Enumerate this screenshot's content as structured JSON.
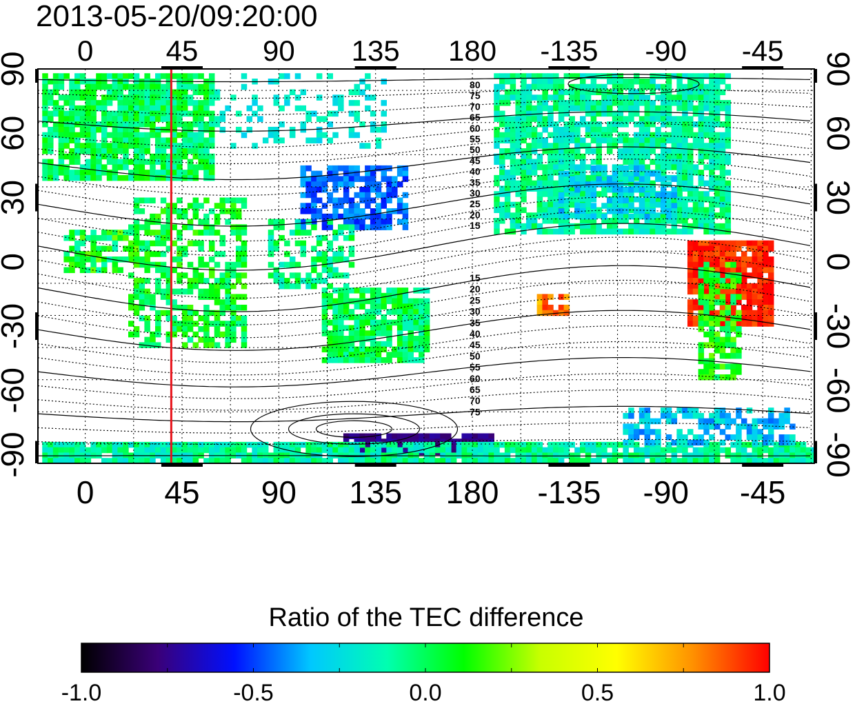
{
  "title": "2013-05-20/09:20:00",
  "map": {
    "top_lon_ticks": [
      "0",
      "45",
      "90",
      "135",
      "180",
      "-135",
      "-90",
      "-45"
    ],
    "bottom_lon_ticks": [
      "0",
      "45",
      "90",
      "135",
      "180",
      "-135",
      "-90",
      "-45"
    ],
    "left_lat_ticks": [
      "90",
      "60",
      "30",
      "0",
      "-30",
      "-60",
      "-90"
    ],
    "right_lat_ticks": [
      "90",
      "60",
      "30",
      "0",
      "-30",
      "-60",
      "-90"
    ],
    "marker_longitude": 40,
    "marker_color": "#e8141c",
    "contour_labels_north": [
      "80",
      "75",
      "70",
      "65",
      "60",
      "55",
      "50",
      "45",
      "40",
      "35",
      "30",
      "25",
      "20",
      "15"
    ],
    "contour_labels_south": [
      "15",
      "20",
      "25",
      "30",
      "35",
      "40",
      "45",
      "50",
      "55",
      "60",
      "65",
      "70",
      "75"
    ]
  },
  "colorbar": {
    "title": "Ratio of the TEC difference",
    "tick_labels": [
      "-1.0",
      "-0.5",
      "0.0",
      "0.5",
      "1.0"
    ],
    "min": -1.0,
    "max": 1.0,
    "stops": [
      "#000000",
      "#3a0078",
      "#0010ff",
      "#00c8ff",
      "#00ffb0",
      "#00ff00",
      "#c8ff00",
      "#ffff00",
      "#ff9000",
      "#ff0000"
    ]
  }
}
